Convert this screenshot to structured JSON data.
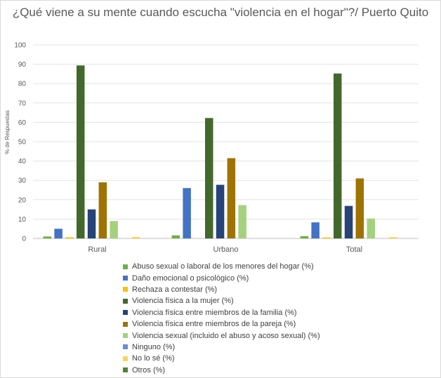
{
  "chart_data": {
    "type": "bar",
    "title": "¿Qué viene a su mente cuando escucha \"violencia en el hogar\"?/ Puerto Quito",
    "ylabel": "% de Respuestas",
    "xlabel": "",
    "ylim": [
      0,
      100
    ],
    "yticks": [
      0,
      10,
      20,
      30,
      40,
      50,
      60,
      70,
      80,
      90,
      100
    ],
    "categories": [
      "Rural",
      "Urbano",
      "Total"
    ],
    "grid": true,
    "legend_position": "bottom",
    "series": [
      {
        "name": "Abuso sexual o laboral de los menores del hogar (%)",
        "color": "#70ad47",
        "values": [
          1.0,
          1.6,
          1.2
        ]
      },
      {
        "name": "Daño emocional o psicológico (%)",
        "color": "#4472c4",
        "values": [
          5.0,
          26.0,
          8.3
        ]
      },
      {
        "name": "Rechaza a contestar (%)",
        "color": "#ffc000",
        "values": [
          0.6,
          0,
          0.5
        ]
      },
      {
        "name": "Violencia física a la mujer (%)",
        "color": "#43682b",
        "values": [
          89.4,
          62.2,
          85.2
        ]
      },
      {
        "name": "Violencia física entre miembros de la familia (%)",
        "color": "#264478",
        "values": [
          15.0,
          27.7,
          16.8
        ]
      },
      {
        "name": "Violencia física entre miembros de la pareja (%)",
        "color": "#9e7300",
        "values": [
          29.0,
          41.5,
          31.0
        ]
      },
      {
        "name": "Violencia sexual (incluido el abuso y acoso sexual) (%)",
        "color": "#a5d17e",
        "values": [
          9.0,
          17.2,
          10.3
        ]
      },
      {
        "name": "Ninguno (%)",
        "color": "#698ed0",
        "values": [
          0,
          0,
          0
        ]
      },
      {
        "name": "No lo sé (%)",
        "color": "#ffd54f",
        "values": [
          0.8,
          0,
          0.7
        ]
      },
      {
        "name": "Otros (%)",
        "color": "#548235",
        "values": [
          0,
          0,
          0
        ]
      }
    ]
  }
}
